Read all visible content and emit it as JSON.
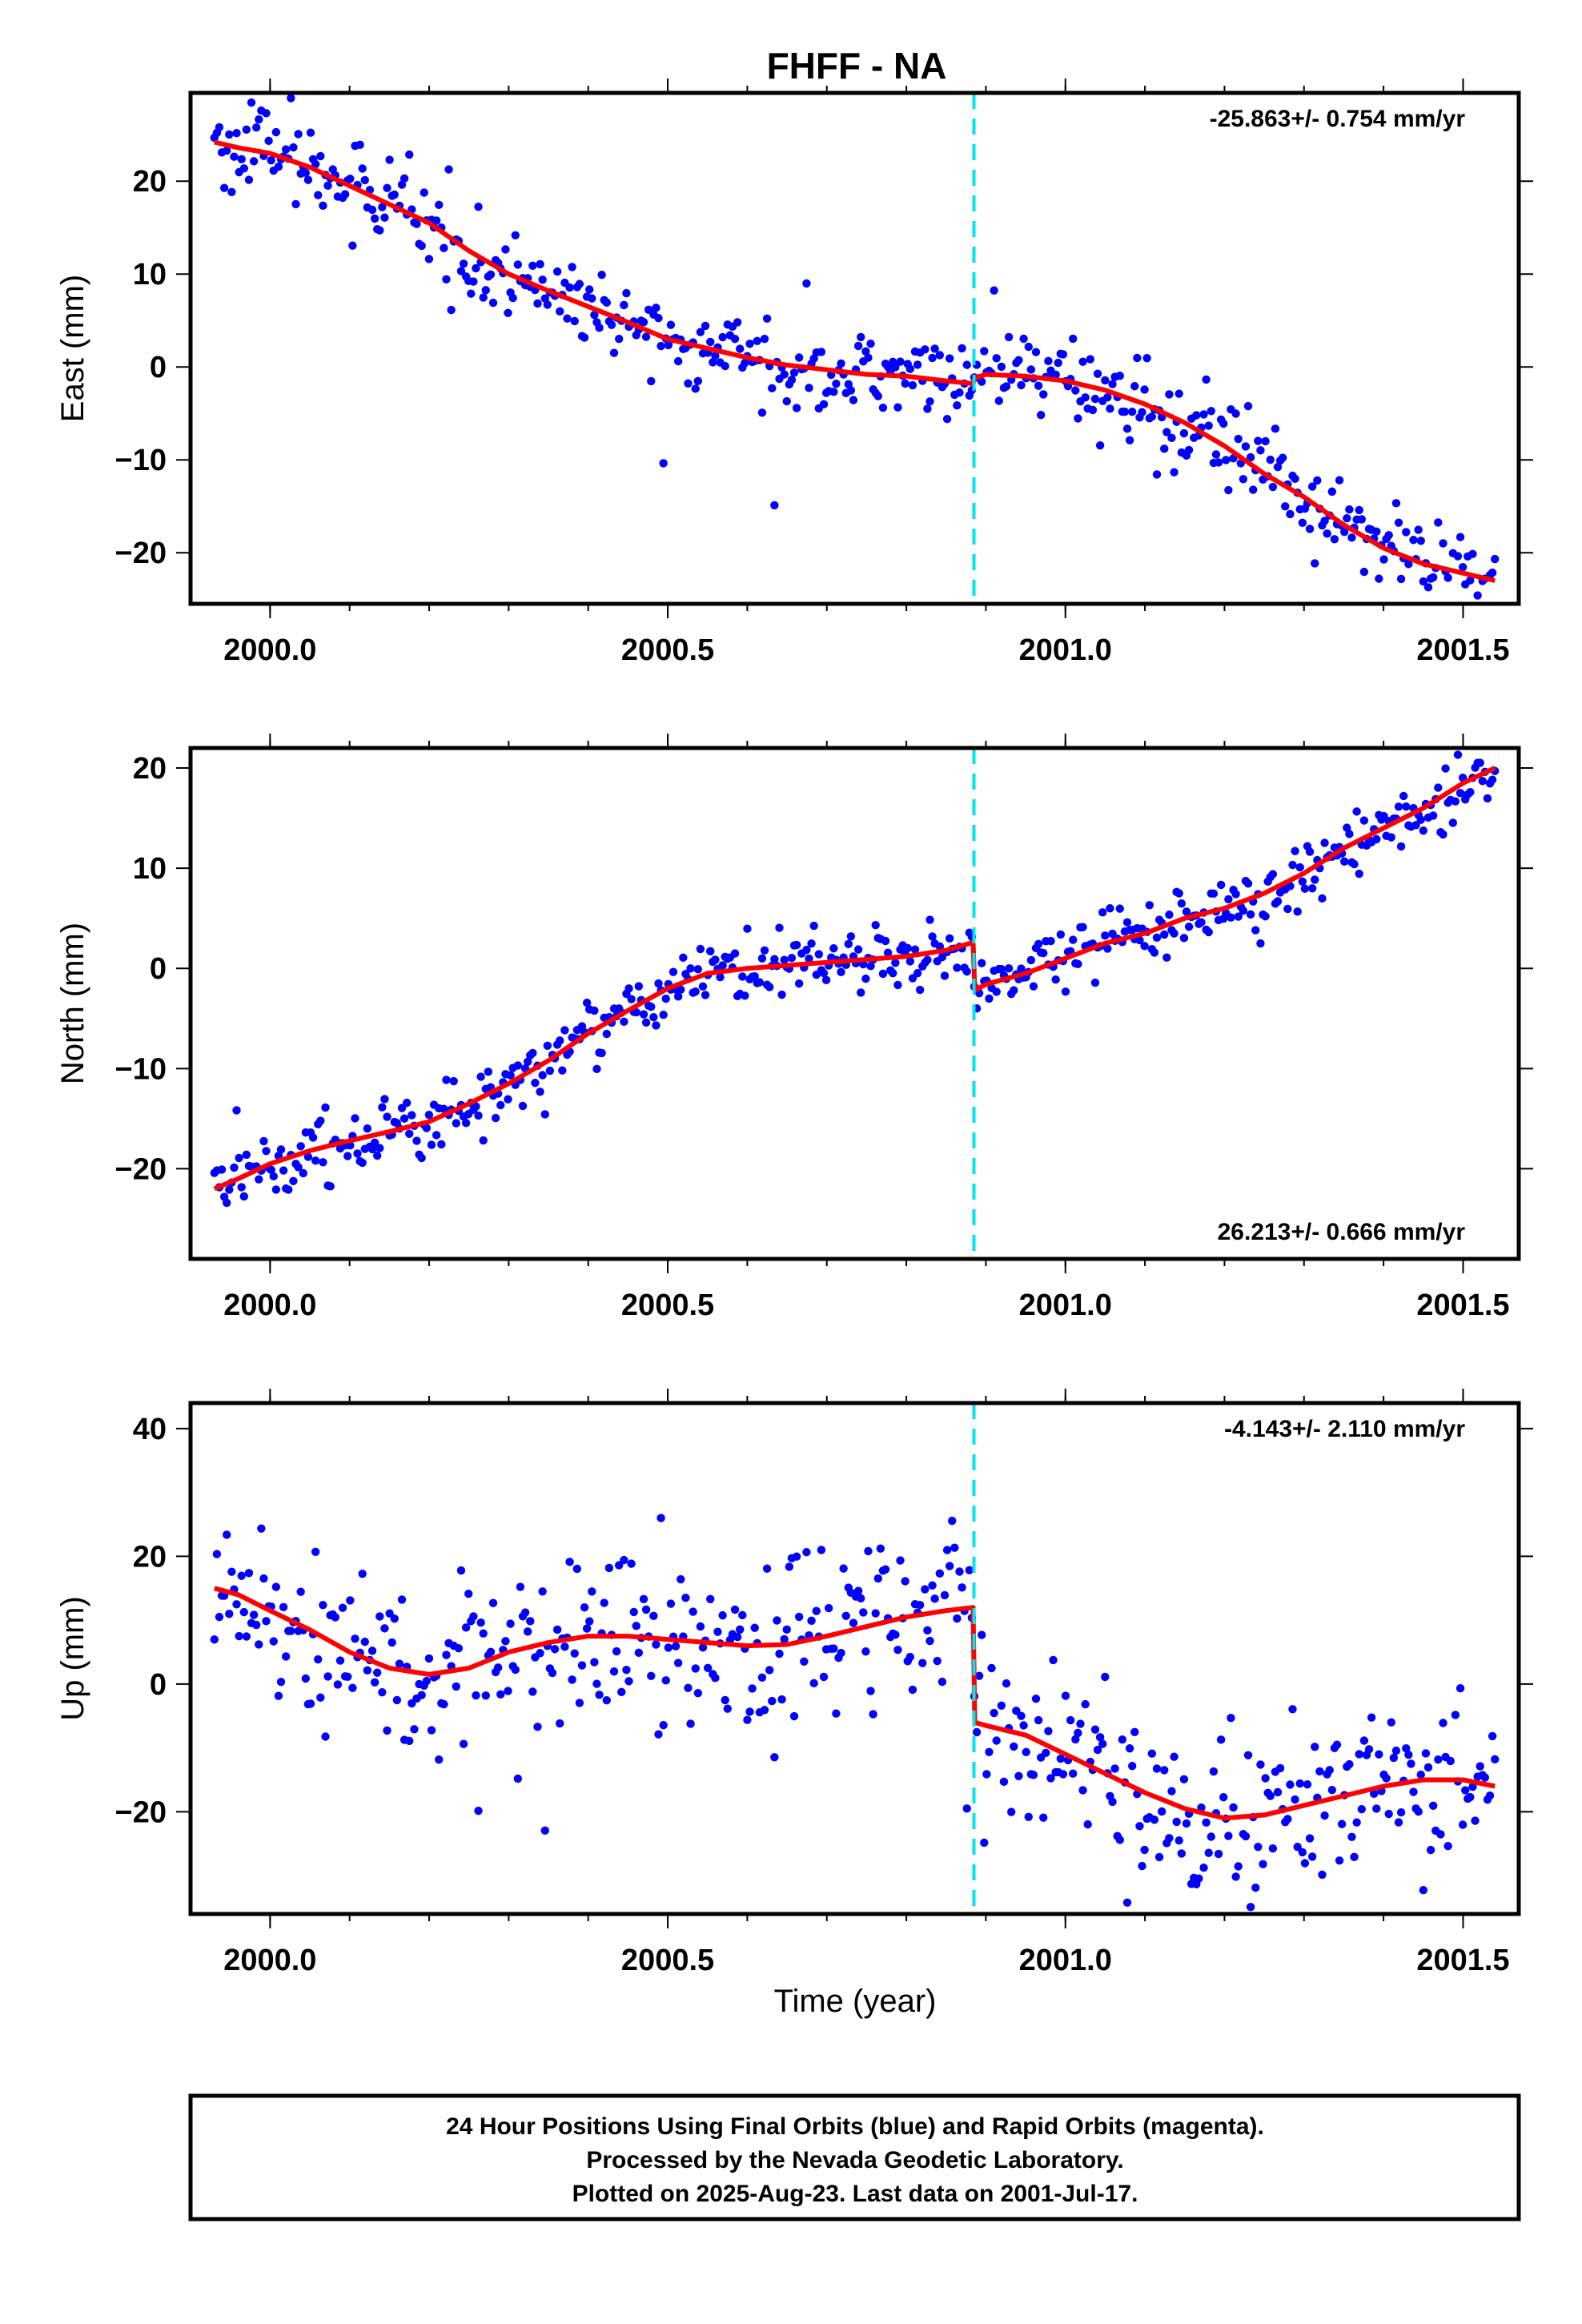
{
  "figure": {
    "title": "FHFF - NA",
    "xlabel": "Time (year)",
    "caption": [
      "24 Hour Positions Using Final Orbits (blue) and Rapid Orbits (magenta).",
      "Processed by the Nevada Geodetic Laboratory.",
      "Plotted on 2025-Aug-23. Last data on 2001-Jul-17."
    ],
    "colors": {
      "final_orbits": "#0000ff",
      "model": "#ff0000",
      "break": "#00e5ee",
      "frame": "#000000"
    }
  },
  "chart_data": [
    {
      "type": "scatter",
      "component": "east",
      "ylabel": "East (mm)",
      "rate_label": "-25.863+/- 0.754 mm/yr",
      "rate_position": "top-right",
      "xlim": [
        1999.9,
        2001.57
      ],
      "ylim": [
        -25.5,
        29.5
      ],
      "xticks": [
        2000.0,
        2000.5,
        2001.0,
        2001.5
      ],
      "xtick_labels": [
        "2000.0",
        "2000.5",
        "2001.0",
        "2001.5"
      ],
      "yticks": [
        -20,
        -10,
        0,
        10,
        20
      ],
      "ytick_labels": [
        "−20",
        "−10",
        "0",
        "10",
        "20"
      ],
      "break_epoch": 2000.885,
      "series": [
        {
          "name": "Final Orbits",
          "kind": "points",
          "x": [
            1999.93,
            1999.96,
            2000.0,
            2000.05,
            2000.1,
            2000.15,
            2000.2,
            2000.25,
            2000.3,
            2000.35,
            2000.4,
            2000.45,
            2000.5,
            2000.55,
            2000.6,
            2000.65,
            2000.7,
            2000.75,
            2000.8,
            2000.85,
            2000.884,
            2000.886,
            2000.9,
            2000.95,
            2001.0,
            2001.05,
            2001.1,
            2001.15,
            2001.2,
            2001.25,
            2001.3,
            2001.35,
            2001.4,
            2001.45,
            2001.5,
            2001.54
          ],
          "y": [
            24.2,
            23.6,
            23.0,
            21.5,
            19.5,
            17.5,
            15.5,
            12.5,
            10.0,
            8.2,
            6.5,
            4.8,
            3.0,
            2.0,
            1.0,
            0.2,
            -0.3,
            -0.8,
            -1.0,
            -1.5,
            -1.8,
            -1.2,
            -0.8,
            -1.0,
            -1.5,
            -2.5,
            -4.0,
            -6.0,
            -8.5,
            -11.5,
            -14.0,
            -17.0,
            -19.5,
            -21.2,
            -22.2,
            -23.0
          ],
          "scatter_mm": 2.2
        },
        {
          "name": "Model",
          "kind": "line",
          "x": [
            1999.93,
            1999.96,
            2000.0,
            2000.05,
            2000.1,
            2000.15,
            2000.2,
            2000.25,
            2000.3,
            2000.35,
            2000.4,
            2000.45,
            2000.5,
            2000.55,
            2000.6,
            2000.65,
            2000.7,
            2000.75,
            2000.8,
            2000.85,
            2000.884,
            2000.886,
            2000.9,
            2000.95,
            2001.0,
            2001.05,
            2001.1,
            2001.15,
            2001.2,
            2001.25,
            2001.3,
            2001.35,
            2001.4,
            2001.45,
            2001.5,
            2001.54
          ],
          "y": [
            24.2,
            23.6,
            23.0,
            21.5,
            19.5,
            17.5,
            15.5,
            12.5,
            10.0,
            8.2,
            6.5,
            4.8,
            3.0,
            2.0,
            1.0,
            0.2,
            -0.3,
            -0.8,
            -1.0,
            -1.5,
            -1.8,
            -1.2,
            -0.8,
            -1.0,
            -1.5,
            -2.5,
            -4.0,
            -6.0,
            -8.5,
            -11.5,
            -14.0,
            -17.0,
            -19.5,
            -21.2,
            -22.2,
            -23.0
          ]
        }
      ]
    },
    {
      "type": "scatter",
      "component": "north",
      "ylabel": "North (mm)",
      "rate_label": "26.213+/- 0.666 mm/yr",
      "rate_position": "bottom-right",
      "xlim": [
        1999.9,
        2001.57
      ],
      "ylim": [
        -29,
        22
      ],
      "xticks": [
        2000.0,
        2000.5,
        2001.0,
        2001.5
      ],
      "xtick_labels": [
        "2000.0",
        "2000.5",
        "2001.0",
        "2001.5"
      ],
      "yticks": [
        -20,
        -10,
        0,
        10,
        20
      ],
      "ytick_labels": [
        "−20",
        "−10",
        "0",
        "10",
        "20"
      ],
      "break_epoch": 2000.885,
      "series": [
        {
          "name": "Final Orbits",
          "kind": "points",
          "x": [
            1999.93,
            1999.96,
            2000.0,
            2000.05,
            2000.1,
            2000.15,
            2000.2,
            2000.25,
            2000.3,
            2000.35,
            2000.4,
            2000.45,
            2000.5,
            2000.55,
            2000.6,
            2000.65,
            2000.7,
            2000.75,
            2000.8,
            2000.85,
            2000.884,
            2000.886,
            2000.9,
            2000.95,
            2001.0,
            2001.05,
            2001.1,
            2001.15,
            2001.2,
            2001.25,
            2001.3,
            2001.35,
            2001.4,
            2001.45,
            2001.5,
            2001.54
          ],
          "y": [
            -22.0,
            -21.0,
            -19.5,
            -18.2,
            -17.2,
            -16.3,
            -15.3,
            -13.5,
            -11.5,
            -9.2,
            -6.5,
            -4.2,
            -2.0,
            -0.5,
            0.0,
            0.3,
            0.6,
            0.9,
            1.2,
            1.8,
            2.6,
            -2.2,
            -1.6,
            -0.5,
            1.0,
            2.5,
            3.5,
            5.0,
            6.0,
            7.5,
            9.5,
            12.0,
            14.0,
            16.0,
            18.5,
            20.0
          ],
          "scatter_mm": 1.6
        },
        {
          "name": "Model",
          "kind": "line",
          "x": [
            1999.93,
            1999.96,
            2000.0,
            2000.05,
            2000.1,
            2000.15,
            2000.2,
            2000.25,
            2000.3,
            2000.35,
            2000.4,
            2000.45,
            2000.5,
            2000.55,
            2000.6,
            2000.65,
            2000.7,
            2000.75,
            2000.8,
            2000.85,
            2000.884,
            2000.886,
            2000.9,
            2000.95,
            2001.0,
            2001.05,
            2001.1,
            2001.15,
            2001.2,
            2001.25,
            2001.3,
            2001.35,
            2001.4,
            2001.45,
            2001.5,
            2001.54
          ],
          "y": [
            -22.0,
            -21.0,
            -19.5,
            -18.2,
            -17.2,
            -16.3,
            -15.3,
            -13.5,
            -11.5,
            -9.2,
            -6.5,
            -4.2,
            -2.0,
            -0.5,
            0.0,
            0.3,
            0.6,
            0.9,
            1.2,
            1.8,
            2.6,
            -2.2,
            -1.6,
            -0.5,
            1.0,
            2.5,
            3.5,
            5.0,
            6.0,
            7.5,
            9.5,
            12.0,
            14.0,
            16.0,
            18.5,
            20.0
          ]
        }
      ]
    },
    {
      "type": "scatter",
      "component": "up",
      "ylabel": "Up (mm)",
      "rate_label": "-4.143+/- 2.110 mm/yr",
      "rate_position": "top-right",
      "xlim": [
        1999.9,
        2001.57
      ],
      "ylim": [
        -36,
        44
      ],
      "xticks": [
        2000.0,
        2000.5,
        2001.0,
        2001.5
      ],
      "xtick_labels": [
        "2000.0",
        "2000.5",
        "2001.0",
        "2001.5"
      ],
      "yticks": [
        -20,
        0,
        20,
        40
      ],
      "ytick_labels": [
        "−20",
        "0",
        "20",
        "40"
      ],
      "break_epoch": 2000.885,
      "series": [
        {
          "name": "Final Orbits",
          "kind": "points",
          "x": [
            1999.93,
            1999.96,
            2000.0,
            2000.05,
            2000.1,
            2000.15,
            2000.2,
            2000.25,
            2000.3,
            2000.35,
            2000.4,
            2000.45,
            2000.5,
            2000.55,
            2000.6,
            2000.65,
            2000.7,
            2000.75,
            2000.8,
            2000.85,
            2000.884,
            2000.886,
            2000.9,
            2000.95,
            2001.0,
            2001.05,
            2001.1,
            2001.15,
            2001.2,
            2001.25,
            2001.3,
            2001.35,
            2001.4,
            2001.45,
            2001.5,
            2001.54
          ],
          "y": [
            15.0,
            14.0,
            11.5,
            8.5,
            5.0,
            2.5,
            1.5,
            2.5,
            5.0,
            6.5,
            7.5,
            7.5,
            7.0,
            6.5,
            6.0,
            6.2,
            7.5,
            9.0,
            10.5,
            11.5,
            12.0,
            -6.0,
            -6.5,
            -8.0,
            -11.0,
            -14.0,
            -17.0,
            -19.5,
            -21.0,
            -20.5,
            -19.0,
            -17.5,
            -16.0,
            -15.0,
            -15.0,
            -16.0
          ],
          "scatter_mm": 7.0
        },
        {
          "name": "Model",
          "kind": "line",
          "x": [
            1999.93,
            1999.96,
            2000.0,
            2000.05,
            2000.1,
            2000.15,
            2000.2,
            2000.25,
            2000.3,
            2000.35,
            2000.4,
            2000.45,
            2000.5,
            2000.55,
            2000.6,
            2000.65,
            2000.7,
            2000.75,
            2000.8,
            2000.85,
            2000.884,
            2000.886,
            2000.9,
            2000.95,
            2001.0,
            2001.05,
            2001.1,
            2001.15,
            2001.2,
            2001.25,
            2001.3,
            2001.35,
            2001.4,
            2001.45,
            2001.5,
            2001.54
          ],
          "y": [
            15.0,
            14.0,
            11.5,
            8.5,
            5.0,
            2.5,
            1.5,
            2.5,
            5.0,
            6.5,
            7.5,
            7.5,
            7.0,
            6.5,
            6.0,
            6.2,
            7.5,
            9.0,
            10.5,
            11.5,
            12.0,
            -6.0,
            -6.5,
            -8.0,
            -11.0,
            -14.0,
            -17.0,
            -19.5,
            -21.0,
            -20.5,
            -19.0,
            -17.5,
            -16.0,
            -15.0,
            -15.0,
            -16.0
          ]
        }
      ]
    }
  ]
}
